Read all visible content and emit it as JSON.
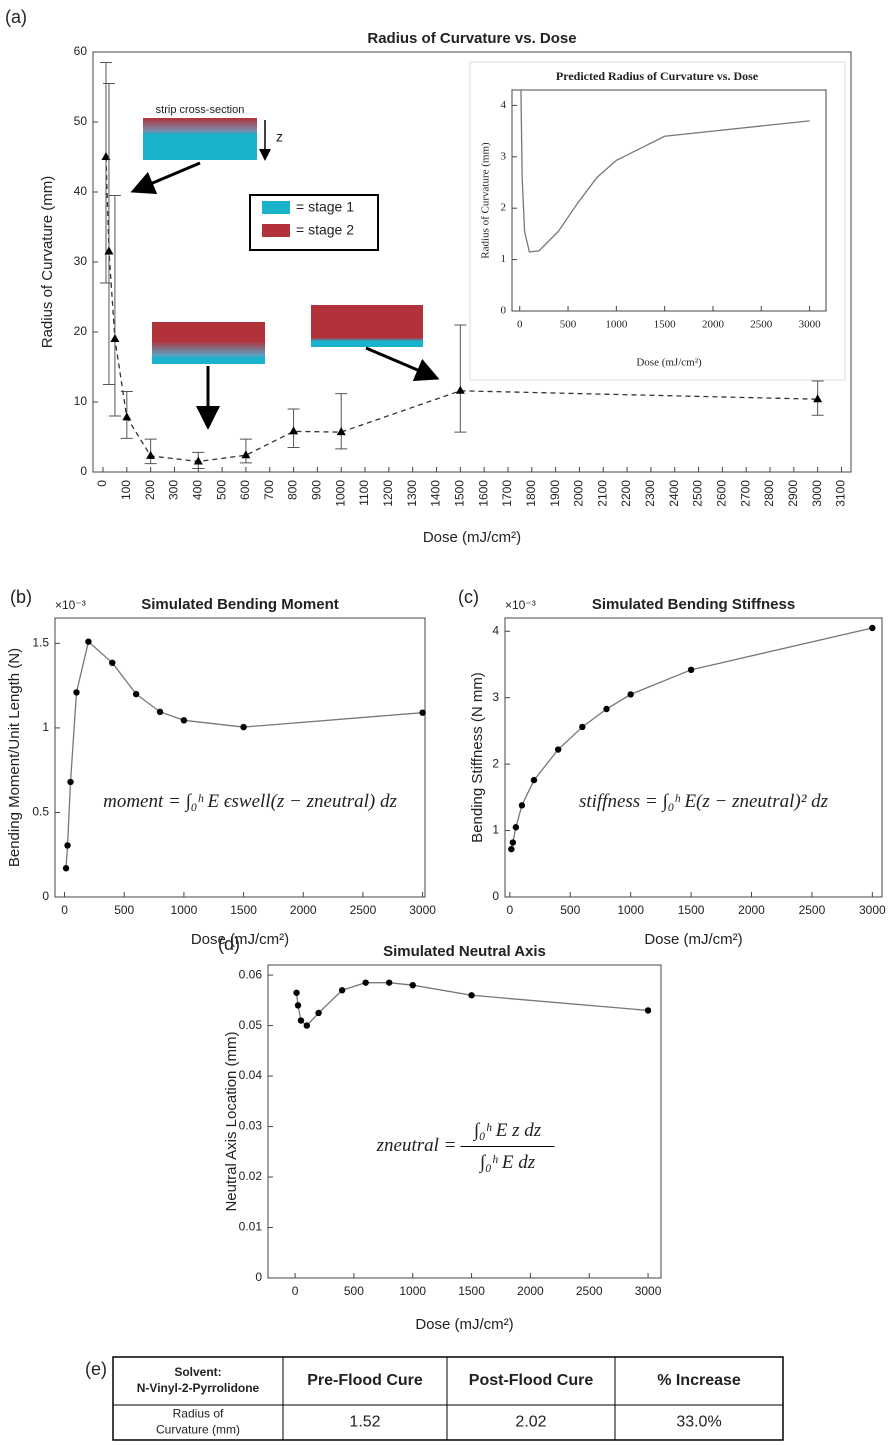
{
  "chart_data": [
    {
      "type": "scatter",
      "panel": "(a)",
      "title": "Radius of Curvature vs. Dose",
      "xlabel": "Dose (mJ/cm²)",
      "ylabel": "Radius of Curvature (mm)",
      "x": [
        12.5,
        25,
        50,
        100,
        200,
        400,
        600,
        800,
        1000,
        1500,
        3000
      ],
      "values": [
        45,
        31.5,
        19,
        7.8,
        2.3,
        1.5,
        2.4,
        5.8,
        5.7,
        11.6,
        10.4
      ],
      "error_lower": [
        27,
        12.5,
        8,
        4.8,
        1.2,
        0.5,
        1.3,
        3.5,
        3.3,
        5.7,
        8.1
      ],
      "error_upper": [
        58.5,
        55.5,
        39.5,
        11.5,
        4.7,
        2.8,
        4.7,
        9,
        11.2,
        21,
        13
      ],
      "xlim": [
        -42,
        3140
      ],
      "ylim": [
        0,
        60
      ],
      "xticks": [
        0,
        100,
        200,
        300,
        400,
        500,
        600,
        700,
        800,
        900,
        1000,
        1100,
        1200,
        1300,
        1400,
        1500,
        1600,
        1700,
        1800,
        1900,
        2000,
        2100,
        2200,
        2300,
        2400,
        2500,
        2600,
        2700,
        2800,
        2900,
        3000,
        3100
      ],
      "yticks": [
        0,
        10,
        20,
        30,
        40,
        50,
        60
      ],
      "annotations": [
        "strip cross-section",
        "z"
      ],
      "legend": [
        {
          "name": "= stage 1",
          "color": "#1bb3cc"
        },
        {
          "name": "= stage 2",
          "color": "#b2323a"
        }
      ]
    },
    {
      "type": "line",
      "title": "Predicted Radius of Curvature vs. Dose",
      "xlabel": "Dose (mJ/cm²)",
      "ylabel": "Radius of Curvature (mm)",
      "x": [
        12.5,
        25,
        50,
        100,
        200,
        400,
        600,
        800,
        1000,
        1500,
        3000
      ],
      "values": [
        4.3,
        2.6,
        1.55,
        1.15,
        1.17,
        1.55,
        2.1,
        2.6,
        2.93,
        3.4,
        3.7
      ],
      "xlim": [
        -80,
        3170
      ],
      "ylim": [
        0,
        4.3
      ],
      "xticks": [
        0,
        500,
        1000,
        1500,
        2000,
        2500,
        3000
      ],
      "yticks": [
        0,
        1,
        2,
        3,
        4
      ]
    },
    {
      "type": "line",
      "markers": true,
      "panel": "(b)",
      "title": "Simulated Bending Moment",
      "multiplier": "×10⁻³",
      "xlabel": "Dose (mJ/cm²)",
      "ylabel": "Bending Moment/Unit Length (N)",
      "x": [
        12.5,
        25,
        50,
        100,
        200,
        400,
        600,
        800,
        1000,
        1500,
        3000
      ],
      "values": [
        0.17,
        0.305,
        0.68,
        1.21,
        1.51,
        1.385,
        1.2,
        1.095,
        1.045,
        1.005,
        1.09
      ],
      "xlim": [
        -80,
        3020
      ],
      "ylim": [
        0,
        1.65
      ],
      "xticks": [
        0,
        500,
        1000,
        1500,
        2000,
        2500,
        3000
      ],
      "yticks": [
        0,
        0.5,
        1,
        1.5
      ],
      "equation": "moment = ∫₀ʰ E ϵswell(z − zneutral) dz"
    },
    {
      "type": "line",
      "markers": true,
      "panel": "(c)",
      "title": "Simulated Bending Stiffness",
      "multiplier": "×10⁻³",
      "xlabel": "Dose (mJ/cm²)",
      "ylabel": "Bending Stiffness (N mm)",
      "x": [
        12.5,
        25,
        50,
        100,
        200,
        400,
        600,
        800,
        1000,
        1500,
        3000
      ],
      "values": [
        0.72,
        0.82,
        1.05,
        1.38,
        1.76,
        2.22,
        2.56,
        2.83,
        3.05,
        3.42,
        4.05
      ],
      "xlim": [
        -40,
        3080
      ],
      "ylim": [
        0,
        4.2
      ],
      "xticks": [
        0,
        500,
        1000,
        1500,
        2000,
        2500,
        3000
      ],
      "yticks": [
        0,
        1,
        2,
        3,
        4
      ],
      "equation": "stiffness = ∫₀ʰ E(z − zneutral)² dz"
    },
    {
      "type": "line",
      "markers": true,
      "panel": "(d)",
      "title": "Simulated Neutral Axis",
      "xlabel": "Dose (mJ/cm²)",
      "ylabel": "Neutral Axis Location (mm)",
      "x": [
        12.5,
        25,
        50,
        100,
        200,
        400,
        600,
        800,
        1000,
        1500,
        3000
      ],
      "values": [
        0.0565,
        0.054,
        0.051,
        0.05,
        0.0525,
        0.057,
        0.0585,
        0.0585,
        0.058,
        0.056,
        0.053
      ],
      "xlim": [
        -230,
        3110
      ],
      "ylim": [
        0,
        0.062
      ],
      "xticks": [
        0,
        500,
        1000,
        1500,
        2000,
        2500,
        3000
      ],
      "yticks": [
        0,
        0.01,
        0.02,
        0.03,
        0.04,
        0.05,
        0.06
      ],
      "equation": {
        "lhs": "zneutral =",
        "numerator": "∫₀ʰ E z dz",
        "denominator": "∫₀ʰ E dz"
      }
    }
  ],
  "table": {
    "panel": "(e)",
    "header": [
      "Solvent: N-Vinyl-2-Pyrrolidone",
      "Pre-Flood Cure",
      "Post-Flood Cure",
      "% Increase"
    ],
    "rows": [
      [
        "Radius of Curvature (mm)",
        "1.52",
        "2.02",
        "33.0%"
      ]
    ]
  }
}
